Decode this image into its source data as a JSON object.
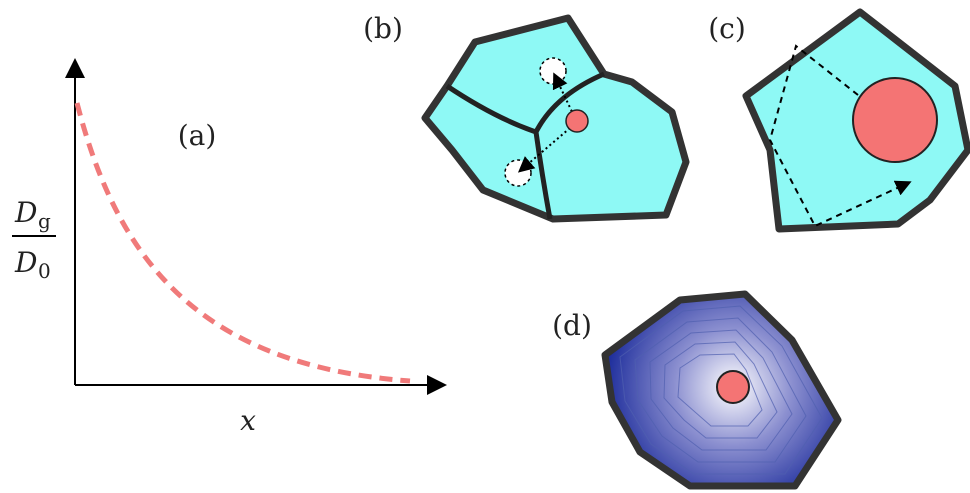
{
  "panels": {
    "a": "(a)",
    "b": "(b)",
    "c": "(c)",
    "d": "(d)"
  },
  "axes": {
    "y_label": {
      "numerator": {
        "base": "D",
        "sub": "g"
      },
      "denominator": {
        "base": "D",
        "sub": "0"
      }
    },
    "x_label": "x"
  }
}
